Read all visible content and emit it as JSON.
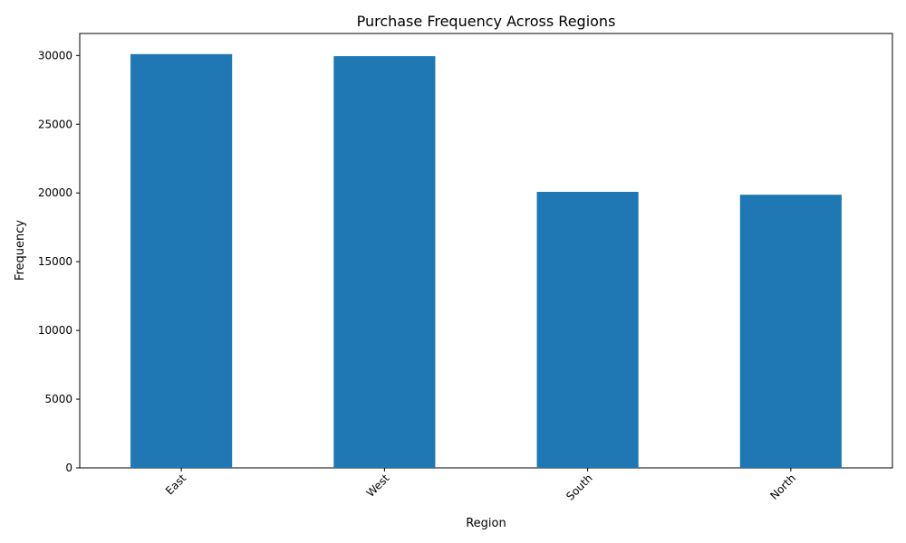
{
  "chart_data": {
    "type": "bar",
    "title": "Purchase Frequency Across Regions",
    "xlabel": "Region",
    "ylabel": "Frequency",
    "categories": [
      "East",
      "West",
      "South",
      "North"
    ],
    "values": [
      30100,
      29950,
      20080,
      19870
    ],
    "ylim": [
      0,
      31600
    ],
    "yticks": [
      0,
      5000,
      10000,
      15000,
      20000,
      25000,
      30000
    ],
    "xtick_rotation_deg": 45,
    "bar_color": "#1f77b4",
    "grid": false,
    "legend": "none"
  }
}
